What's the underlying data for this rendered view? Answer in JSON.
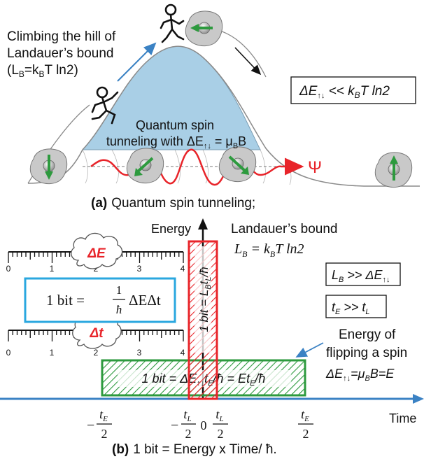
{
  "panel_a": {
    "hill_label": [
      "Climbing the hill of",
      "Landauer’s bound",
      "(L",
      "B",
      "=k",
      "B",
      "T ln2)"
    ],
    "box_label": [
      "ΔE",
      "↑↓",
      " << k",
      "B",
      "T ln2"
    ],
    "tunnel_label": [
      "Quantum spin",
      "tunneling with ΔE",
      "↑↓",
      " = μ",
      "B",
      "B"
    ],
    "psi": "Ψ",
    "caption_letter": "(a)",
    "caption_text": "Quantum spin tunneling;"
  },
  "panel_b": {
    "energy_label": "Energy",
    "landauer_title": "Landauer’s bound",
    "landauer_eq": [
      "L",
      "B",
      " = k",
      "B",
      "T ln2"
    ],
    "delta_e": "ΔE",
    "delta_t": "Δt",
    "ruler_ticks": [
      "0",
      "1",
      "2",
      "3",
      "4"
    ],
    "bit_formula": [
      "1 bit = ",
      "1",
      "ħ",
      "ΔEΔt"
    ],
    "bit_vertical": "1 bit = L₂tₗ/ħ",
    "bit_vertical_parts": [
      "1 bit = L",
      "B",
      "t",
      "L",
      "/ħ"
    ],
    "cond1": [
      "L",
      "B",
      " >> ΔE",
      "↑↓"
    ],
    "cond2": [
      "t",
      "E",
      " >> t",
      "L"
    ],
    "flip_label": [
      "Energy of",
      "flipping a spin"
    ],
    "flip_eq": [
      "ΔE",
      "↑↓",
      "=μ",
      "B",
      "B=E"
    ],
    "bit_horizontal": [
      "1 bit = ΔE",
      "↑↓",
      "t",
      "E",
      "/ħ = Et",
      "E",
      "/ħ"
    ],
    "time_label": "Time",
    "time_ticks": {
      "minus_te": [
        "−",
        "t",
        "E",
        "2"
      ],
      "minus_tl": [
        "−",
        "t",
        "L",
        "2"
      ],
      "zero": "0",
      "tl": [
        "t",
        "L",
        "2"
      ],
      "te": [
        "t",
        "E",
        "2"
      ]
    },
    "caption_letter": "(b)",
    "caption_text": "1 bit = Energy x Time/ ħ."
  },
  "colors": {
    "hill_fill": "#a9cfe6",
    "wave": "#e8242a",
    "green": "#2d9a3e",
    "cyan": "#2aa7df",
    "arrow_blue": "#3b82c4",
    "red_box": "#e8242a"
  }
}
